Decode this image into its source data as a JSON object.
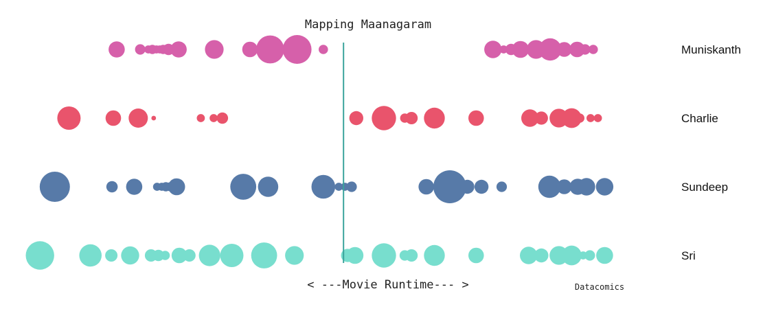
{
  "chart_data": {
    "type": "scatter",
    "title": "Mapping Maanagaram",
    "xlabel": "< ---Movie Runtime--- >",
    "credit": "Datacomics",
    "xlim": [
      0,
      100
    ],
    "marker_position": 49,
    "size_unit": "relative presence (0-100)",
    "series": [
      {
        "name": "Muniskanth",
        "color": "#d660aa",
        "points": [
          {
            "x": 15.3,
            "v": 12
          },
          {
            "x": 18.8,
            "v": 5
          },
          {
            "x": 20.0,
            "v": 3
          },
          {
            "x": 20.6,
            "v": 4
          },
          {
            "x": 21.2,
            "v": 3
          },
          {
            "x": 21.7,
            "v": 3
          },
          {
            "x": 22.2,
            "v": 4
          },
          {
            "x": 23.0,
            "v": 6
          },
          {
            "x": 24.5,
            "v": 12
          },
          {
            "x": 29.8,
            "v": 16
          },
          {
            "x": 35.1,
            "v": 11
          },
          {
            "x": 38.1,
            "v": 36
          },
          {
            "x": 42.1,
            "v": 38
          },
          {
            "x": 46.0,
            "v": 4
          },
          {
            "x": 71.2,
            "v": 14
          },
          {
            "x": 72.8,
            "v": 3
          },
          {
            "x": 73.9,
            "v": 6
          },
          {
            "x": 75.3,
            "v": 13
          },
          {
            "x": 77.6,
            "v": 16
          },
          {
            "x": 79.7,
            "v": 23
          },
          {
            "x": 81.8,
            "v": 10
          },
          {
            "x": 83.7,
            "v": 11
          },
          {
            "x": 84.9,
            "v": 5
          },
          {
            "x": 86.1,
            "v": 4
          }
        ]
      },
      {
        "name": "Charlie",
        "color": "#e9546c",
        "points": [
          {
            "x": 8.2,
            "v": 25
          },
          {
            "x": 14.8,
            "v": 11
          },
          {
            "x": 18.5,
            "v": 17
          },
          {
            "x": 20.8,
            "v": 1
          },
          {
            "x": 27.8,
            "v": 3
          },
          {
            "x": 29.7,
            "v": 3
          },
          {
            "x": 31.0,
            "v": 6
          },
          {
            "x": 50.9,
            "v": 9
          },
          {
            "x": 55.0,
            "v": 27
          },
          {
            "x": 58.1,
            "v": 4
          },
          {
            "x": 59.1,
            "v": 7
          },
          {
            "x": 62.5,
            "v": 20
          },
          {
            "x": 68.7,
            "v": 11
          },
          {
            "x": 76.7,
            "v": 14
          },
          {
            "x": 78.4,
            "v": 8
          },
          {
            "x": 81.0,
            "v": 16
          },
          {
            "x": 82.9,
            "v": 18
          },
          {
            "x": 84.1,
            "v": 4
          },
          {
            "x": 85.7,
            "v": 3
          },
          {
            "x": 86.8,
            "v": 3
          }
        ]
      },
      {
        "name": "Sundeep",
        "color": "#577aa8",
        "points": [
          {
            "x": 6.1,
            "v": 42
          },
          {
            "x": 14.6,
            "v": 6
          },
          {
            "x": 17.9,
            "v": 12
          },
          {
            "x": 21.3,
            "v": 3
          },
          {
            "x": 22.0,
            "v": 3
          },
          {
            "x": 22.6,
            "v": 4
          },
          {
            "x": 23.3,
            "v": 4
          },
          {
            "x": 24.2,
            "v": 13
          },
          {
            "x": 34.1,
            "v": 31
          },
          {
            "x": 37.8,
            "v": 19
          },
          {
            "x": 46.0,
            "v": 26
          },
          {
            "x": 48.3,
            "v": 3
          },
          {
            "x": 49.2,
            "v": 3
          },
          {
            "x": 50.2,
            "v": 5
          },
          {
            "x": 61.3,
            "v": 11
          },
          {
            "x": 64.8,
            "v": 50
          },
          {
            "x": 67.4,
            "v": 9
          },
          {
            "x": 69.5,
            "v": 9
          },
          {
            "x": 72.5,
            "v": 5
          },
          {
            "x": 79.6,
            "v": 23
          },
          {
            "x": 81.8,
            "v": 10
          },
          {
            "x": 83.8,
            "v": 12
          },
          {
            "x": 85.1,
            "v": 14
          },
          {
            "x": 87.8,
            "v": 14
          }
        ]
      },
      {
        "name": "Sri",
        "color": "#78dece",
        "points": [
          {
            "x": 3.9,
            "v": 37
          },
          {
            "x": 11.4,
            "v": 23
          },
          {
            "x": 14.5,
            "v": 7
          },
          {
            "x": 17.3,
            "v": 15
          },
          {
            "x": 20.4,
            "v": 7
          },
          {
            "x": 21.5,
            "v": 6
          },
          {
            "x": 22.5,
            "v": 4
          },
          {
            "x": 24.6,
            "v": 11
          },
          {
            "x": 26.1,
            "v": 7
          },
          {
            "x": 29.1,
            "v": 21
          },
          {
            "x": 32.4,
            "v": 25
          },
          {
            "x": 37.2,
            "v": 31
          },
          {
            "x": 41.7,
            "v": 16
          },
          {
            "x": 49.6,
            "v": 8
          },
          {
            "x": 50.7,
            "v": 13
          },
          {
            "x": 55.0,
            "v": 27
          },
          {
            "x": 58.1,
            "v": 5
          },
          {
            "x": 59.1,
            "v": 7
          },
          {
            "x": 62.5,
            "v": 20
          },
          {
            "x": 68.7,
            "v": 11
          },
          {
            "x": 76.5,
            "v": 14
          },
          {
            "x": 78.4,
            "v": 9
          },
          {
            "x": 81.0,
            "v": 16
          },
          {
            "x": 82.9,
            "v": 18
          },
          {
            "x": 84.6,
            "v": 3
          },
          {
            "x": 85.6,
            "v": 5
          },
          {
            "x": 87.8,
            "v": 13
          }
        ]
      }
    ]
  }
}
